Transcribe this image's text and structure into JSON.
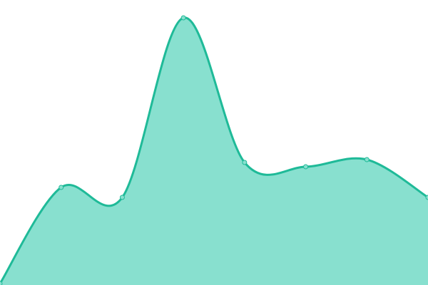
{
  "chart_data": {
    "type": "area",
    "x": [
      0,
      1,
      2,
      3,
      4,
      5,
      6,
      7
    ],
    "values": [
      2,
      137,
      123,
      375,
      172,
      166,
      176,
      123
    ],
    "ylim": [
      0,
      400
    ],
    "xlim": [
      0,
      7
    ],
    "grid": false,
    "axes_visible": false,
    "smooth": true,
    "markers": true,
    "colors": {
      "fill": "#88e0cf",
      "line": "#1fba98",
      "marker_fill": "#88e0cf"
    }
  }
}
